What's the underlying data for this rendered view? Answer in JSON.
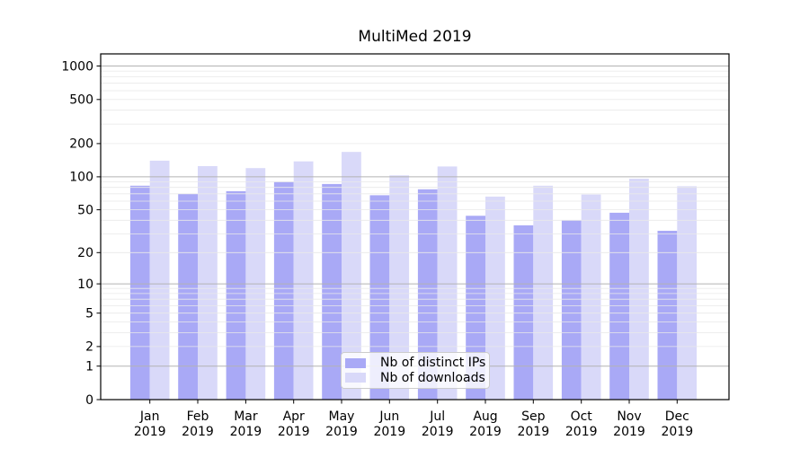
{
  "title": "MultiMed 2019",
  "chart_data": {
    "type": "bar",
    "title": "MultiMed 2019",
    "xlabel": "",
    "ylabel": "",
    "scale": "log(value+1)",
    "ylim": [
      0,
      1300
    ],
    "grid": true,
    "legend_position": "lower center",
    "year_label": "2019",
    "categories": [
      "Jan",
      "Feb",
      "Mar",
      "Apr",
      "May",
      "Jun",
      "Jul",
      "Aug",
      "Sep",
      "Oct",
      "Nov",
      "Dec"
    ],
    "yticks": [
      0,
      1,
      2,
      5,
      10,
      20,
      50,
      100,
      200,
      500,
      1000
    ],
    "minor_gridlines": [
      2,
      3,
      4,
      5,
      6,
      7,
      8,
      9,
      20,
      30,
      40,
      50,
      60,
      70,
      80,
      90,
      200,
      300,
      400,
      500,
      600,
      700,
      800,
      900
    ],
    "major_gridlines": [
      1,
      10,
      100,
      1000
    ],
    "series": [
      {
        "name": "Nb of distinct IPs",
        "color": "#a9a9f6",
        "values": [
          83,
          70,
          74,
          90,
          86,
          68,
          77,
          44,
          36,
          40,
          47,
          32
        ]
      },
      {
        "name": "Nb of downloads",
        "color": "#d9d9f9",
        "values": [
          140,
          125,
          120,
          138,
          168,
          103,
          124,
          66,
          83,
          69,
          96,
          82
        ]
      }
    ]
  },
  "colors": {
    "background": "#ffffff",
    "axis": "#000000",
    "text": "#000000",
    "major_grid": "#b3b3b3",
    "minor_grid": "#e9e9e9",
    "series1": "#a9a9f6",
    "series2": "#d9d9f9"
  }
}
